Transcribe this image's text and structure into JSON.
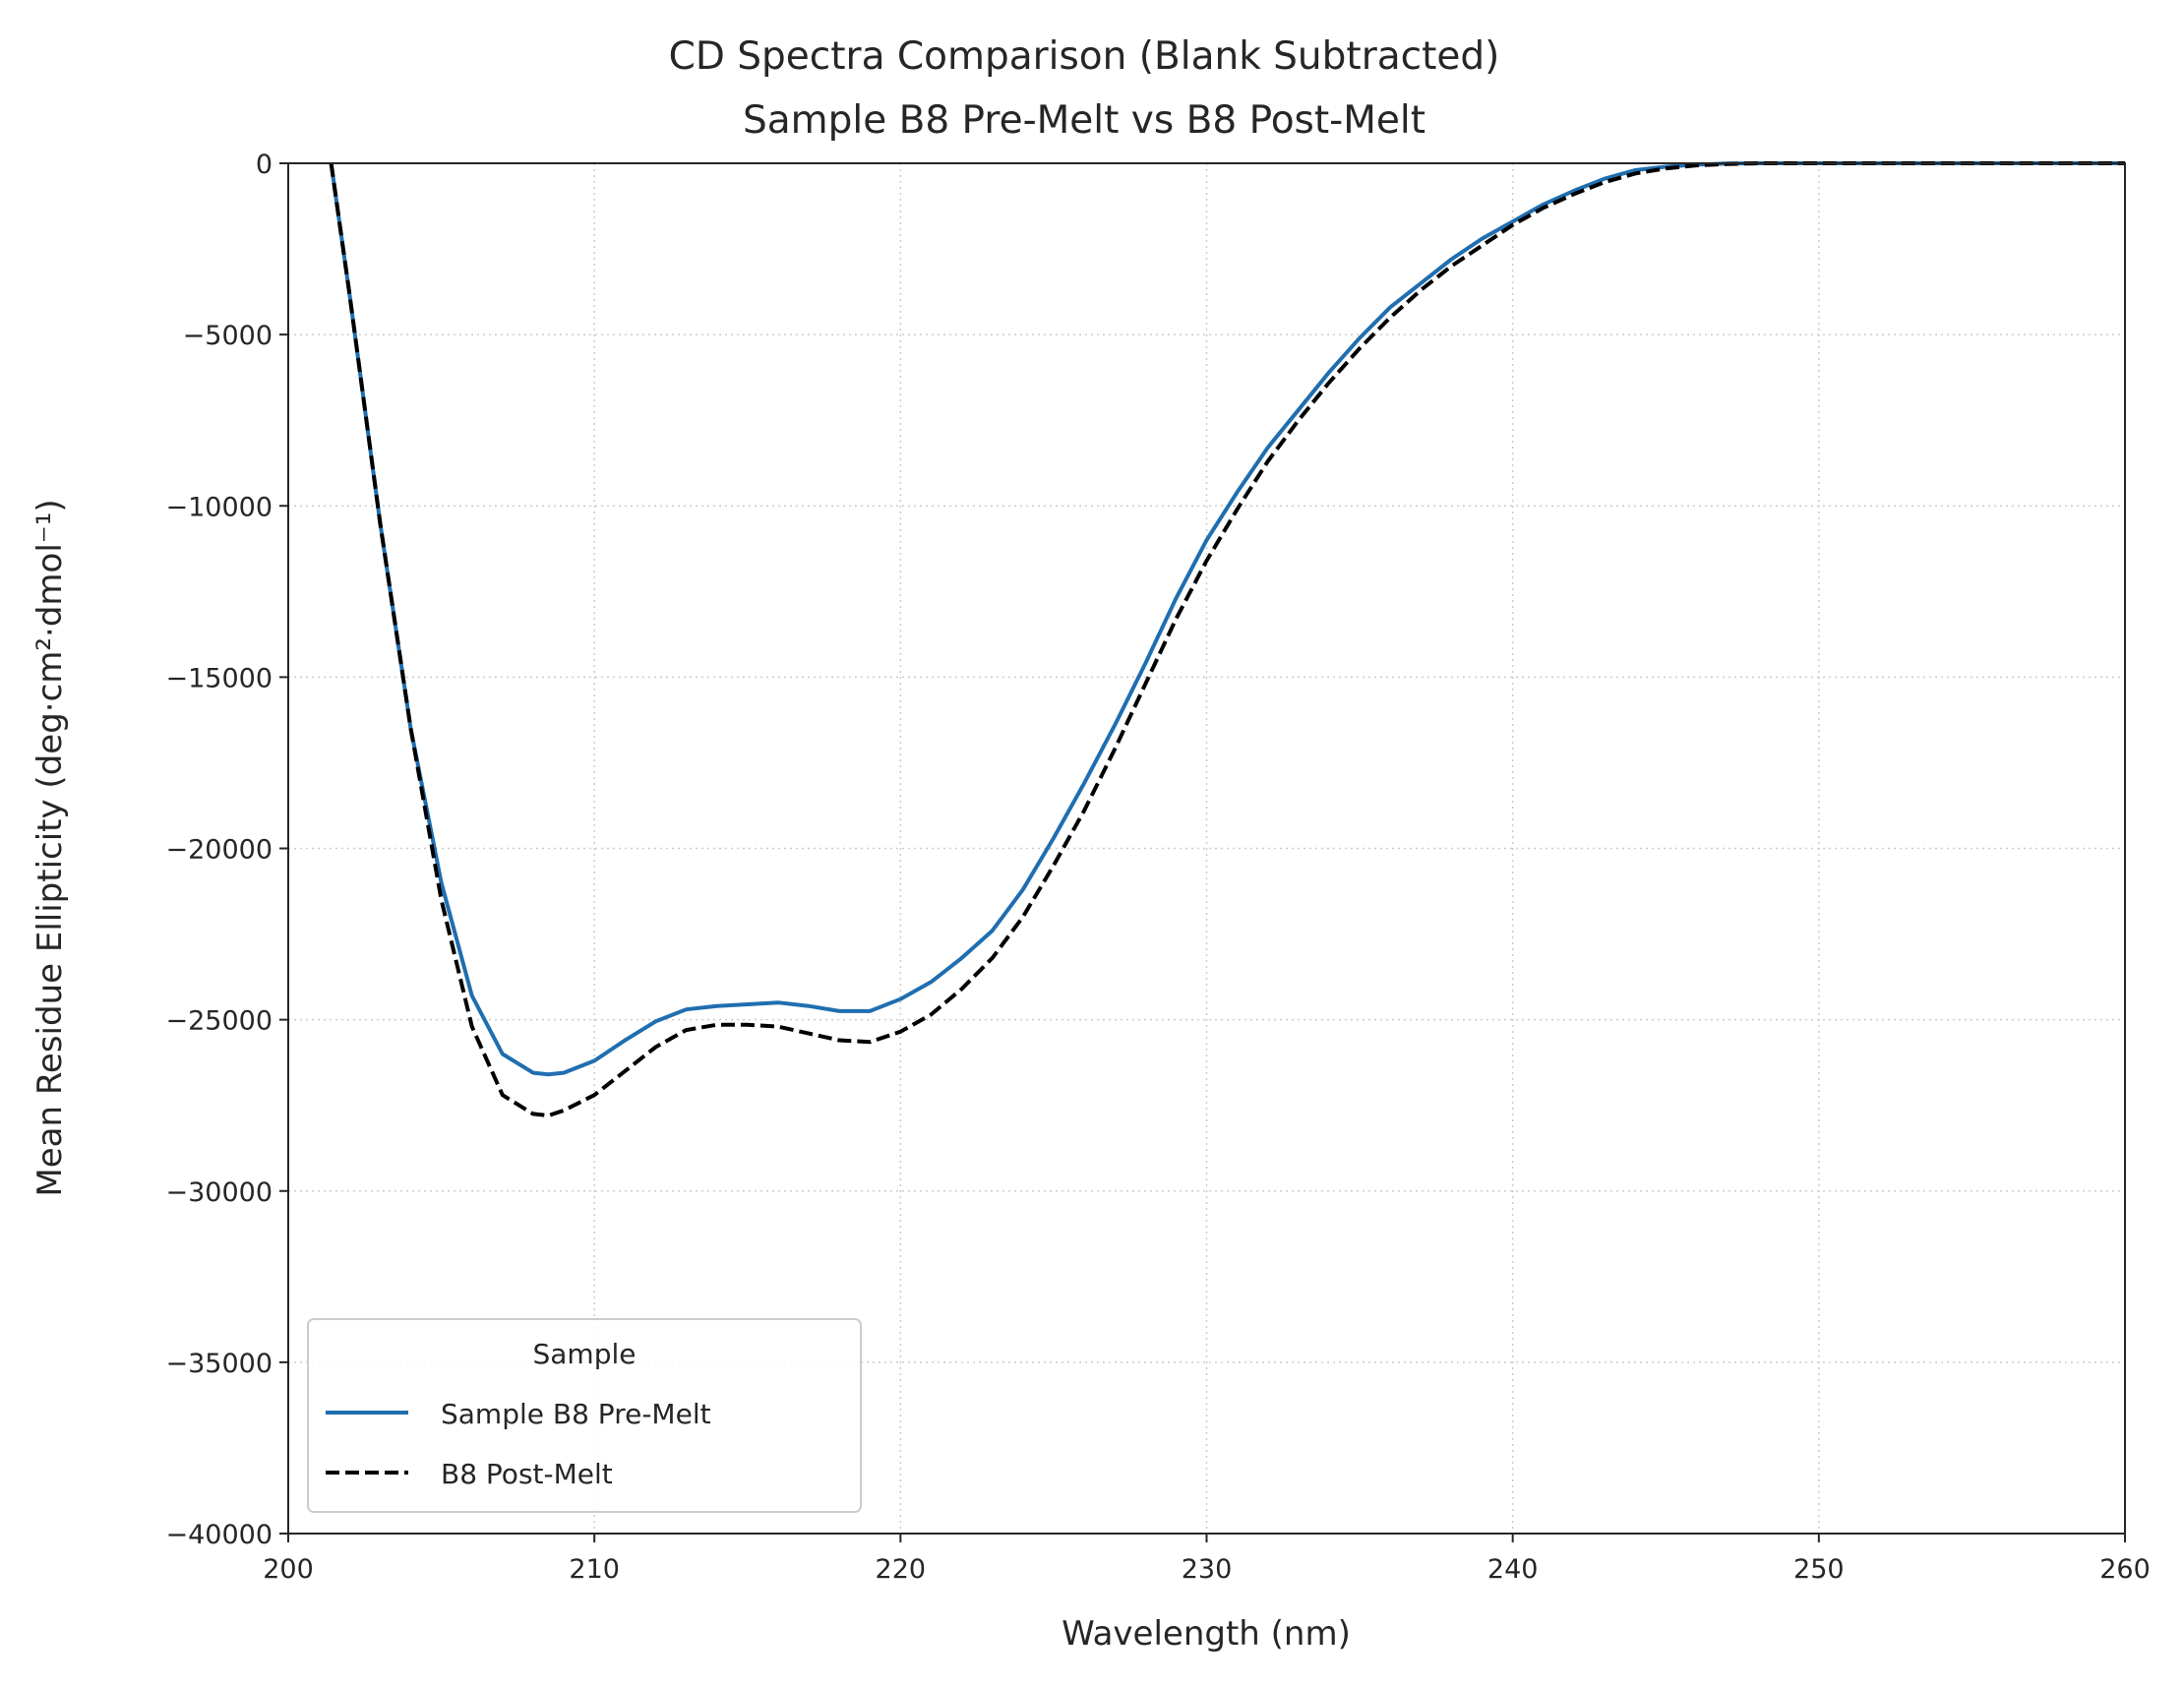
{
  "chart_data": {
    "type": "line",
    "title": "CD Spectra Comparison (Blank Subtracted)",
    "subtitle": "Sample B8 Pre-Melt vs B8 Post-Melt",
    "xlabel": "Wavelength (nm)",
    "ylabel": "Mean Residue Ellipticity (deg·cm²·dmol⁻¹)",
    "xlim": [
      200,
      260
    ],
    "ylim": [
      -40000,
      0
    ],
    "xticks": [
      200,
      210,
      220,
      230,
      240,
      250,
      260
    ],
    "yticks": [
      0,
      -5000,
      -10000,
      -15000,
      -20000,
      -25000,
      -30000,
      -35000,
      -40000
    ],
    "ytick_labels": [
      "0",
      "−5000",
      "−10000",
      "−15000",
      "−20000",
      "−25000",
      "−30000",
      "−35000",
      "−40000"
    ],
    "grid": true,
    "legend": {
      "title": "Sample",
      "placement": "lower-left"
    },
    "series": [
      {
        "name": "Sample B8 Pre-Melt",
        "color": "#1f6eb0",
        "style": "solid",
        "x": [
          201.4,
          202,
          203,
          204,
          205,
          206,
          207,
          208,
          208.5,
          209,
          210,
          211,
          212,
          213,
          214,
          215,
          216,
          217,
          218,
          219,
          220,
          221,
          222,
          223,
          224,
          225,
          226,
          227,
          228,
          229,
          230,
          231,
          232,
          233,
          234,
          235,
          236,
          237,
          238,
          239,
          240,
          241,
          242,
          243,
          244,
          245,
          246,
          247,
          248,
          250,
          255,
          260
        ],
        "y": [
          0,
          -3800,
          -10500,
          -16500,
          -21000,
          -24300,
          -26000,
          -26550,
          -26600,
          -26550,
          -26200,
          -25600,
          -25050,
          -24700,
          -24600,
          -24550,
          -24500,
          -24600,
          -24750,
          -24750,
          -24400,
          -23900,
          -23200,
          -22400,
          -21200,
          -19700,
          -18100,
          -16400,
          -14600,
          -12700,
          -11000,
          -9600,
          -8300,
          -7200,
          -6100,
          -5100,
          -4200,
          -3500,
          -2800,
          -2200,
          -1700,
          -1200,
          -800,
          -450,
          -200,
          -100,
          -40,
          -10,
          0,
          0,
          0,
          0
        ]
      },
      {
        "name": "B8 Post-Melt",
        "color": "#000000",
        "style": "dashed",
        "x": [
          201.4,
          202,
          203,
          204,
          205,
          206,
          207,
          208,
          208.5,
          209,
          210,
          211,
          212,
          213,
          214,
          215,
          216,
          217,
          218,
          219,
          220,
          221,
          222,
          223,
          224,
          225,
          226,
          227,
          228,
          229,
          230,
          231,
          232,
          233,
          234,
          235,
          236,
          237,
          238,
          239,
          240,
          241,
          242,
          243,
          244,
          245,
          246,
          247,
          248,
          250,
          255,
          260
        ],
        "y": [
          0,
          -3800,
          -10500,
          -16500,
          -21500,
          -25200,
          -27200,
          -27750,
          -27800,
          -27650,
          -27200,
          -26500,
          -25800,
          -25300,
          -25150,
          -25150,
          -25200,
          -25400,
          -25600,
          -25650,
          -25350,
          -24850,
          -24100,
          -23200,
          -22000,
          -20500,
          -18900,
          -17100,
          -15200,
          -13300,
          -11600,
          -10100,
          -8700,
          -7500,
          -6400,
          -5400,
          -4500,
          -3700,
          -3000,
          -2400,
          -1800,
          -1300,
          -900,
          -550,
          -300,
          -150,
          -60,
          -20,
          0,
          0,
          0,
          0
        ]
      }
    ]
  }
}
